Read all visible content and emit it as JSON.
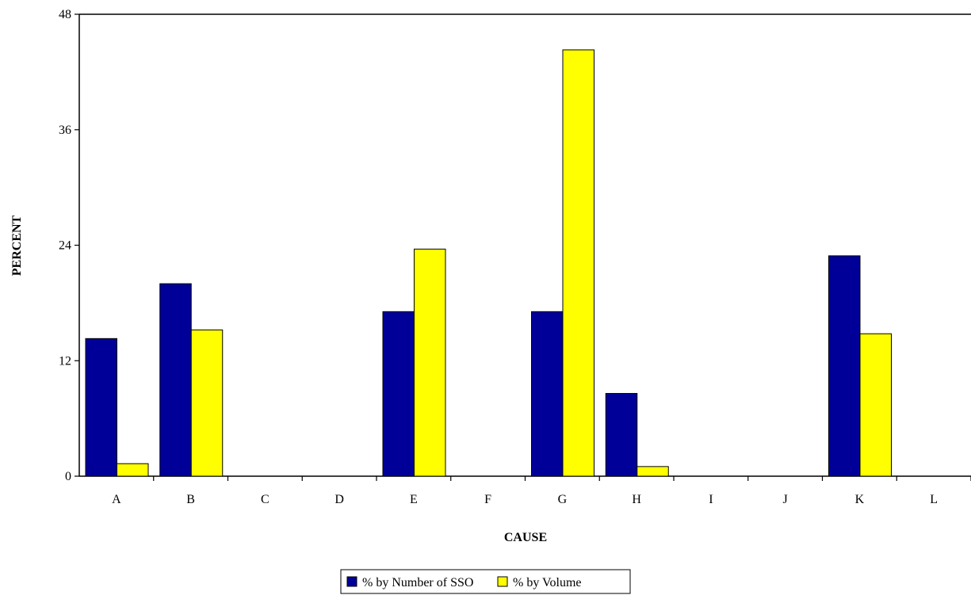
{
  "chart_data": {
    "type": "bar",
    "xlabel": "CAUSE",
    "ylabel": "PERCENT",
    "categories": [
      "A",
      "B",
      "C",
      "D",
      "E",
      "F",
      "G",
      "H",
      "I",
      "J",
      "K",
      "L"
    ],
    "ylim": [
      0,
      48
    ],
    "yticks": [
      0,
      12,
      24,
      36,
      48
    ],
    "grid": false,
    "legend_position": "bottom-center",
    "series": [
      {
        "name": "% by Number of SSO",
        "color": "#000099",
        "values": [
          14.3,
          20.0,
          0,
          0,
          17.1,
          0,
          17.1,
          8.6,
          0,
          0,
          22.9,
          0
        ]
      },
      {
        "name": "% by Volume",
        "color": "#FFFF00",
        "values": [
          1.3,
          15.2,
          0,
          0,
          23.6,
          0,
          44.3,
          1.0,
          0,
          0,
          14.8,
          0
        ]
      }
    ]
  }
}
